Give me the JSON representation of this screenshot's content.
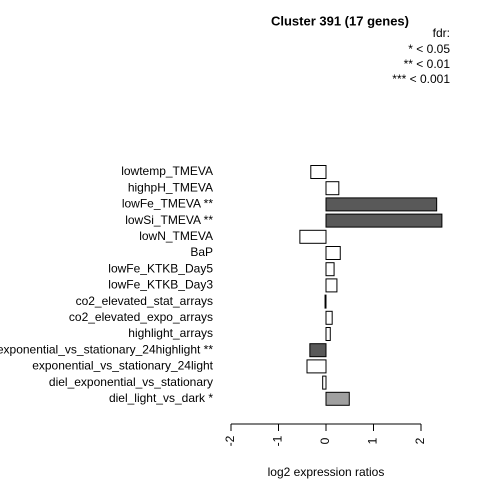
{
  "chart_data": {
    "type": "hbar",
    "title": "Cluster 391 (17 genes)",
    "legend_title": "fdr:",
    "legend_entries": [
      "* < 0.05",
      "** < 0.01",
      "*** < 0.001"
    ],
    "xlabel": "log2 expression ratios",
    "categories": [
      "lowtemp_TMEVA",
      "highpH_TMEVA",
      "lowFe_TMEVA **",
      "lowSi_TMEVA **",
      "lowN_TMEVA",
      "BaP",
      "lowFe_KTKB_Day5",
      "lowFe_KTKB_Day3",
      "co2_elevated_stat_arrays",
      "co2_elevated_expo_arrays",
      "highlight_arrays",
      "exponential_vs_stationary_24highlight **",
      "exponential_vs_stationary_24light",
      "diel_exponential_vs_stationary",
      "diel_light_vs_dark *"
    ],
    "values": [
      -0.32,
      0.27,
      2.33,
      2.44,
      -0.55,
      0.3,
      0.17,
      0.23,
      -0.02,
      0.13,
      0.09,
      -0.34,
      -0.4,
      -0.07,
      0.49
    ],
    "colors": [
      "#ffffff",
      "#ffffff",
      "#595959",
      "#595959",
      "#ffffff",
      "#ffffff",
      "#ffffff",
      "#ffffff",
      "#ffffff",
      "#ffffff",
      "#ffffff",
      "#595959",
      "#ffffff",
      "#ffffff",
      "#a0a0a0"
    ],
    "xlim": [
      -2,
      2
    ],
    "xticks": [
      -2,
      -1,
      0,
      1,
      2
    ]
  }
}
